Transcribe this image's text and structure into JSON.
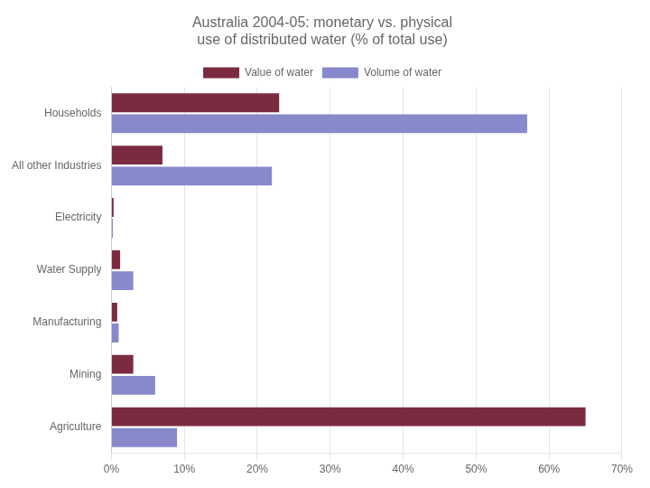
{
  "chart_data": {
    "type": "bar",
    "orientation": "horizontal",
    "title": "Australia 2004-05: monetary vs. physical\nuse of distributed water (% of total use)",
    "categories": [
      "Households",
      "All other Industries",
      "Electricity",
      "Water Supply",
      "Manufacturing",
      "Mining",
      "Agriculture"
    ],
    "series": [
      {
        "name": "Value of water",
        "color": "#7B2B3F",
        "values": [
          23,
          7,
          0.3,
          1.2,
          0.8,
          3.0,
          65
        ]
      },
      {
        "name": "Volume of water",
        "color": "#8888CC",
        "values": [
          57,
          22,
          0.2,
          3.0,
          1.0,
          6.0,
          9
        ]
      }
    ],
    "xlim": [
      0,
      70
    ],
    "xticks": [
      {
        "value": 0,
        "label": "0%"
      },
      {
        "value": 10,
        "label": "10%"
      },
      {
        "value": 20,
        "label": "20%"
      },
      {
        "value": 30,
        "label": "30%"
      },
      {
        "value": 40,
        "label": "40%"
      },
      {
        "value": 50,
        "label": "50%"
      },
      {
        "value": 60,
        "label": "60%"
      },
      {
        "value": 70,
        "label": "70%"
      }
    ],
    "grid": true,
    "legend": "top"
  }
}
